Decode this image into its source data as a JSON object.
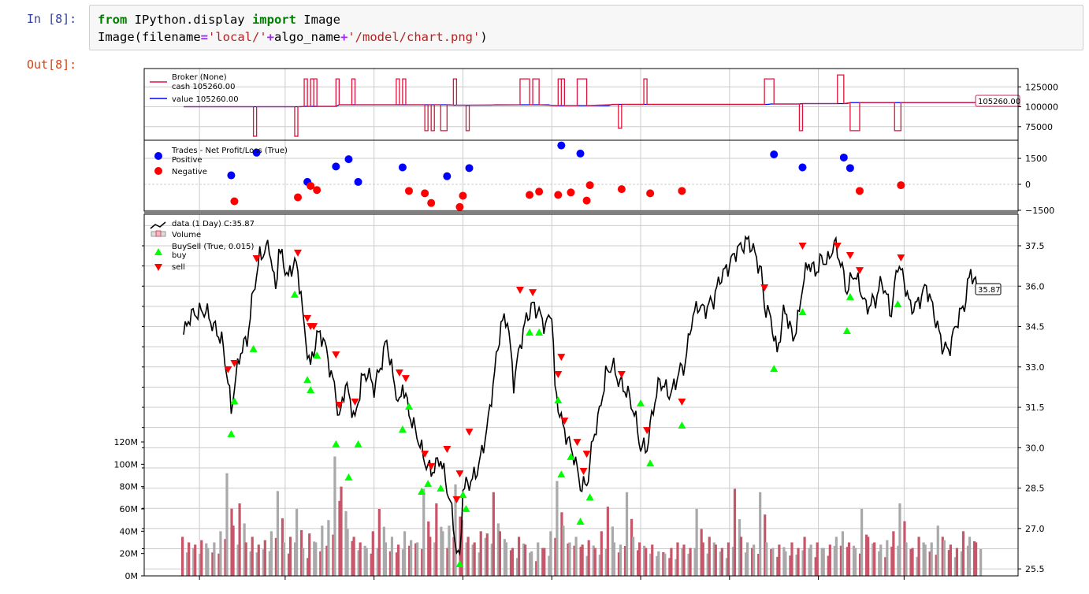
{
  "notebook": {
    "input_prompt": "In [8]:",
    "output_prompt": "Out[8]:",
    "code_lines": [
      [
        {
          "t": "from",
          "k": "kw"
        },
        {
          "t": " IPython.display ",
          "k": ""
        },
        {
          "t": "import",
          "k": "kw"
        },
        {
          "t": " Image",
          "k": ""
        }
      ],
      [
        {
          "t": "Image(filename",
          "k": ""
        },
        {
          "t": "=",
          "k": "op"
        },
        {
          "t": "'local/'",
          "k": "str"
        },
        {
          "t": "+",
          "k": "op"
        },
        {
          "t": "algo_name",
          "k": ""
        },
        {
          "t": "+",
          "k": "op"
        },
        {
          "t": "'/model/chart.png'",
          "k": "str"
        },
        {
          "t": ")",
          "k": ""
        }
      ]
    ]
  },
  "chart_data": [
    {
      "type": "line",
      "panel": "broker",
      "legend": {
        "title": "Broker (None)",
        "cash": "cash 105260.00",
        "value": "value 105260.00"
      },
      "colors": {
        "cash": "#dc143c",
        "value": "#0000ff"
      },
      "yticks": [
        75000,
        100000,
        125000
      ],
      "ylim": [
        58000,
        148000
      ],
      "last_value_label": "105260.00",
      "base_steps": [
        [
          0,
          100000
        ],
        [
          38,
          100500
        ],
        [
          49,
          102500
        ],
        [
          85,
          102000
        ],
        [
          98,
          102500
        ],
        [
          116,
          101500
        ],
        [
          135,
          103000
        ],
        [
          185,
          103500
        ],
        [
          195,
          104000
        ],
        [
          210,
          105260
        ],
        [
          250,
          105260
        ]
      ],
      "cash_spikes_up": [
        [
          38,
          39,
          135000
        ],
        [
          40,
          41,
          135000
        ],
        [
          41,
          42,
          135000
        ],
        [
          48,
          49,
          135000
        ],
        [
          53,
          54,
          135000
        ],
        [
          67,
          68,
          135000
        ],
        [
          69,
          70,
          135000
        ],
        [
          85,
          86,
          135000
        ],
        [
          106,
          109,
          135000
        ],
        [
          110,
          112,
          135000
        ],
        [
          118,
          119,
          135000
        ],
        [
          119,
          120,
          135000
        ],
        [
          124,
          127,
          135000
        ],
        [
          145,
          146,
          135000
        ],
        [
          183,
          186,
          135000
        ],
        [
          206,
          208,
          140000
        ]
      ],
      "cash_spikes_down": [
        [
          22,
          23,
          63000
        ],
        [
          35,
          36,
          63000
        ],
        [
          76,
          77,
          70000
        ],
        [
          78,
          79,
          70000
        ],
        [
          81,
          83,
          70000
        ],
        [
          89,
          90,
          70000
        ],
        [
          137,
          138,
          73000
        ],
        [
          194,
          195,
          70000
        ],
        [
          210,
          213,
          70000
        ],
        [
          224,
          226,
          70000
        ]
      ]
    },
    {
      "type": "scatter",
      "panel": "trades",
      "legend": {
        "title": "Trades - Net Profit/Loss (True)",
        "positive": "Positive",
        "negative": "Negative"
      },
      "colors": {
        "positive": "#0000ff",
        "negative": "#ff0000"
      },
      "yticks": [
        -1500,
        0,
        1500
      ],
      "ylim": [
        -1550,
        2550
      ],
      "positive": [
        [
          15,
          520
        ],
        [
          23,
          1830
        ],
        [
          39,
          140
        ],
        [
          48,
          1030
        ],
        [
          52,
          1450
        ],
        [
          55,
          140
        ],
        [
          69,
          980
        ],
        [
          83,
          470
        ],
        [
          90,
          940
        ],
        [
          119,
          2250
        ],
        [
          125,
          1780
        ],
        [
          186,
          1730
        ],
        [
          195,
          980
        ],
        [
          208,
          1550
        ],
        [
          210,
          940
        ]
      ],
      "negative": [
        [
          16,
          -980
        ],
        [
          36,
          -750
        ],
        [
          40,
          -90
        ],
        [
          42,
          -330
        ],
        [
          71,
          -380
        ],
        [
          76,
          -520
        ],
        [
          78,
          -1080
        ],
        [
          87,
          -1310
        ],
        [
          88,
          -660
        ],
        [
          109,
          -610
        ],
        [
          112,
          -420
        ],
        [
          118,
          -610
        ],
        [
          122,
          -470
        ],
        [
          127,
          -940
        ],
        [
          128,
          -50
        ],
        [
          138,
          -280
        ],
        [
          147,
          -520
        ],
        [
          157,
          -380
        ],
        [
          213,
          -380
        ],
        [
          226,
          -50
        ]
      ]
    },
    {
      "type": "line",
      "panel": "price",
      "legend": {
        "data": "data (1 Day) C:35.87",
        "volume": "Volume",
        "buysell": "BuySell (True, 0.015)",
        "buy": "buy",
        "sell": "sell"
      },
      "colors": {
        "price": "#000000",
        "buy": "#00ff00",
        "sell": "#ff0000",
        "vol_up": "#c8566a",
        "vol_down": "#a9a9a9"
      },
      "yticks": [
        25.5,
        27.0,
        28.5,
        30.0,
        31.5,
        33.0,
        34.5,
        36.0,
        37.5
      ],
      "ylim": [
        25.24,
        38.67
      ],
      "xticks": [
        5,
        32,
        60,
        88,
        116,
        144,
        172,
        200,
        227
      ],
      "last_value_label": "35.87",
      "volume_yticks": [
        "0M",
        "20M",
        "40M",
        "60M",
        "80M",
        "100M",
        "120M"
      ],
      "price": [
        [
          0,
          34.2
        ],
        [
          2,
          34.9
        ],
        [
          4,
          35.0
        ],
        [
          7,
          35.1
        ],
        [
          9,
          34.6
        ],
        [
          12,
          34.0
        ],
        [
          14,
          32.5
        ],
        [
          15,
          31.3
        ],
        [
          16,
          32.3
        ],
        [
          18,
          33.6
        ],
        [
          20,
          34.0
        ],
        [
          22,
          35.8
        ],
        [
          24,
          37.1
        ],
        [
          27,
          37.5
        ],
        [
          29,
          35.8
        ],
        [
          30,
          37.4
        ],
        [
          33,
          36.3
        ],
        [
          35,
          37.0
        ],
        [
          37,
          35.8
        ],
        [
          38,
          34.3
        ],
        [
          40,
          33.0
        ],
        [
          42,
          34.2
        ],
        [
          44,
          34.1
        ],
        [
          46,
          33.0
        ],
        [
          48,
          32.0
        ],
        [
          49,
          31.0
        ],
        [
          51,
          32.4
        ],
        [
          53,
          31.5
        ],
        [
          54,
          31.0
        ],
        [
          56,
          32.5
        ],
        [
          58,
          32.8
        ],
        [
          60,
          32.2
        ],
        [
          62,
          33.0
        ],
        [
          64,
          34.0
        ],
        [
          66,
          32.6
        ],
        [
          68,
          31.5
        ],
        [
          69,
          32.4
        ],
        [
          71,
          31.3
        ],
        [
          74,
          30.3
        ],
        [
          76,
          29.5
        ],
        [
          78,
          29.1
        ],
        [
          81,
          29.6
        ],
        [
          83,
          28.5
        ],
        [
          84,
          28.0
        ],
        [
          86,
          26.2
        ],
        [
          87,
          25.8
        ],
        [
          88,
          28.5
        ],
        [
          90,
          28.7
        ],
        [
          92,
          29.0
        ],
        [
          94,
          29.8
        ],
        [
          96,
          31.0
        ],
        [
          98,
          32.8
        ],
        [
          100,
          34.6
        ],
        [
          102,
          34.8
        ],
        [
          104,
          32.4
        ],
        [
          106,
          33.8
        ],
        [
          108,
          34.8
        ],
        [
          110,
          35.3
        ],
        [
          112,
          35.0
        ],
        [
          114,
          34.5
        ],
        [
          116,
          35.1
        ],
        [
          117,
          32.2
        ],
        [
          119,
          31.0
        ],
        [
          121,
          30.3
        ],
        [
          123,
          29.7
        ],
        [
          125,
          28.6
        ],
        [
          127,
          28.6
        ],
        [
          129,
          30.3
        ],
        [
          131,
          31.3
        ],
        [
          133,
          32.7
        ],
        [
          135,
          33.1
        ],
        [
          137,
          32.5
        ],
        [
          140,
          32.0
        ],
        [
          142,
          31.3
        ],
        [
          144,
          30.0
        ],
        [
          146,
          30.0
        ],
        [
          148,
          31.5
        ],
        [
          150,
          32.5
        ],
        [
          153,
          32.0
        ],
        [
          154,
          32.1
        ],
        [
          156,
          32.8
        ],
        [
          158,
          33.1
        ],
        [
          160,
          34.7
        ],
        [
          162,
          35.3
        ],
        [
          164,
          35.1
        ],
        [
          167,
          35.5
        ],
        [
          169,
          36.3
        ],
        [
          172,
          36.8
        ],
        [
          174,
          37.3
        ],
        [
          176,
          37.5
        ],
        [
          178,
          37.7
        ],
        [
          180,
          37.2
        ],
        [
          182,
          36.5
        ],
        [
          183,
          35.3
        ],
        [
          185,
          34.8
        ],
        [
          187,
          33.5
        ],
        [
          189,
          35.0
        ],
        [
          190,
          35.0
        ],
        [
          192,
          34.0
        ],
        [
          194,
          35.0
        ],
        [
          195,
          36.1
        ],
        [
          197,
          36.9
        ],
        [
          199,
          36.5
        ],
        [
          201,
          37.0
        ],
        [
          203,
          36.9
        ],
        [
          205,
          37.6
        ],
        [
          207,
          36.9
        ],
        [
          209,
          35.8
        ],
        [
          211,
          36.5
        ],
        [
          213,
          36.0
        ],
        [
          215,
          35.2
        ],
        [
          218,
          35.5
        ],
        [
          220,
          36.2
        ],
        [
          223,
          35.0
        ],
        [
          225,
          36.9
        ],
        [
          227,
          36.2
        ],
        [
          229,
          35.2
        ],
        [
          231,
          35.3
        ],
        [
          234,
          36.0
        ],
        [
          236,
          35.2
        ],
        [
          239,
          33.8
        ],
        [
          241,
          33.6
        ],
        [
          244,
          34.8
        ],
        [
          246,
          35.3
        ],
        [
          248,
          36.6
        ],
        [
          250,
          35.87
        ]
      ],
      "buy": [
        [
          15,
          30.51
        ],
        [
          16,
          31.73
        ],
        [
          22,
          33.67
        ],
        [
          35,
          35.69
        ],
        [
          39,
          32.52
        ],
        [
          40,
          32.14
        ],
        [
          42,
          33.43
        ],
        [
          48,
          30.13
        ],
        [
          52,
          28.9
        ],
        [
          55,
          30.13
        ],
        [
          69,
          30.68
        ],
        [
          71,
          31.53
        ],
        [
          75,
          28.37
        ],
        [
          77,
          28.66
        ],
        [
          81,
          28.49
        ],
        [
          87,
          25.68
        ],
        [
          88,
          28.25
        ],
        [
          89,
          27.73
        ],
        [
          109,
          34.28
        ],
        [
          112,
          34.28
        ],
        [
          118,
          31.76
        ],
        [
          119,
          29.01
        ],
        [
          122,
          29.66
        ],
        [
          125,
          27.26
        ],
        [
          128,
          28.16
        ],
        [
          144,
          31.65
        ],
        [
          147,
          29.42
        ],
        [
          157,
          30.83
        ],
        [
          186,
          32.93
        ],
        [
          195,
          35.04
        ],
        [
          209,
          34.34
        ],
        [
          210,
          35.6
        ],
        [
          225,
          35.33
        ]
      ],
      "sell": [
        [
          14,
          32.91
        ],
        [
          16,
          33.14
        ],
        [
          23,
          37.03
        ],
        [
          36,
          37.24
        ],
        [
          39,
          34.81
        ],
        [
          40,
          34.51
        ],
        [
          41,
          34.51
        ],
        [
          48,
          33.46
        ],
        [
          49,
          31.59
        ],
        [
          54,
          31.71
        ],
        [
          68,
          32.79
        ],
        [
          70,
          32.58
        ],
        [
          76,
          29.77
        ],
        [
          78,
          29.31
        ],
        [
          83,
          29.95
        ],
        [
          86,
          28.08
        ],
        [
          87,
          29.04
        ],
        [
          90,
          30.59
        ],
        [
          106,
          35.86
        ],
        [
          110,
          35.77
        ],
        [
          118,
          32.73
        ],
        [
          119,
          33.37
        ],
        [
          120,
          31.0
        ],
        [
          124,
          30.21
        ],
        [
          126,
          29.13
        ],
        [
          127,
          29.77
        ],
        [
          138,
          32.73
        ],
        [
          146,
          30.65
        ],
        [
          157,
          31.71
        ],
        [
          183,
          35.95
        ],
        [
          195,
          37.5
        ],
        [
          206,
          37.5
        ],
        [
          210,
          37.15
        ],
        [
          213,
          36.59
        ],
        [
          226,
          37.06
        ]
      ],
      "volume_millions_every_2_bars": [
        35,
        30,
        28,
        32,
        25,
        30,
        40,
        92,
        45,
        65,
        30,
        35,
        28,
        32,
        40,
        76,
        30,
        35,
        60,
        25,
        38,
        30,
        45,
        50,
        107,
        80,
        42,
        35,
        30,
        25,
        40,
        60,
        30,
        35,
        28,
        40,
        32,
        30,
        78,
        35,
        65,
        40,
        45,
        82,
        50,
        35,
        30,
        40,
        38,
        75,
        40,
        30,
        25,
        35,
        28,
        22,
        30,
        25,
        40,
        85,
        45,
        30,
        35,
        28,
        32,
        25,
        40,
        62,
        30,
        28,
        75,
        35,
        30,
        25,
        28,
        22,
        20,
        25,
        30,
        28,
        25,
        60,
        30,
        35,
        28,
        25,
        30,
        78,
        35,
        30,
        28,
        75,
        30,
        25,
        28,
        22,
        30,
        25,
        35,
        28,
        30,
        25,
        28,
        35,
        40,
        30,
        25,
        60,
        35,
        30,
        28,
        32,
        40,
        65,
        30,
        25,
        35,
        28,
        30,
        45,
        32,
        28,
        25,
        40,
        35,
        30
      ]
    }
  ]
}
